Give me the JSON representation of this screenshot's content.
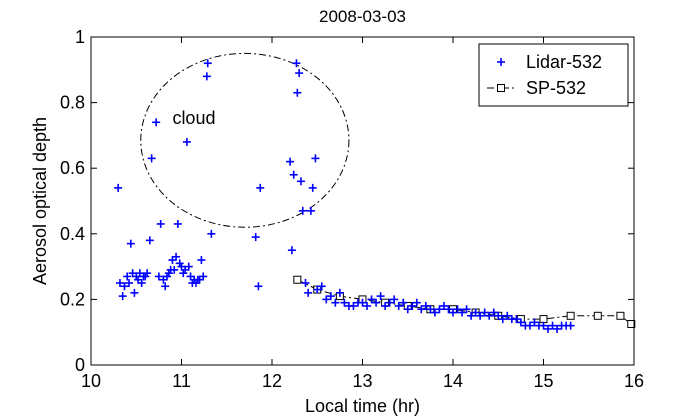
{
  "chart_data": {
    "type": "scatter",
    "title": "2008-03-03",
    "xlabel": "Local time (hr)",
    "ylabel": "Aerosol optical depth",
    "xlim": [
      10,
      16
    ],
    "ylim": [
      0,
      1
    ],
    "xticks": [
      10,
      11,
      12,
      13,
      14,
      15,
      16
    ],
    "yticks": [
      0,
      0.2,
      0.4,
      0.6,
      0.8,
      1
    ],
    "xtick_labels": [
      "10",
      "11",
      "12",
      "13",
      "14",
      "15",
      "16"
    ],
    "ytick_labels": [
      "0",
      "0.2",
      "0.4",
      "0.6",
      "0.8",
      "1"
    ],
    "grid": false,
    "legend_position": "top-right",
    "annotation": {
      "text": "cloud",
      "at": [
        10.9,
        0.75
      ],
      "ellipse_center": [
        11.7,
        0.685
      ],
      "ellipse_radii": [
        1.15,
        0.265
      ]
    },
    "series": [
      {
        "name": "Lidar-532",
        "marker": "plus",
        "color": "#0000ff",
        "points": [
          [
            10.3,
            0.54
          ],
          [
            10.32,
            0.25
          ],
          [
            10.35,
            0.21
          ],
          [
            10.37,
            0.24
          ],
          [
            10.4,
            0.27
          ],
          [
            10.42,
            0.25
          ],
          [
            10.44,
            0.37
          ],
          [
            10.46,
            0.28
          ],
          [
            10.48,
            0.22
          ],
          [
            10.5,
            0.27
          ],
          [
            10.52,
            0.26
          ],
          [
            10.54,
            0.28
          ],
          [
            10.56,
            0.25
          ],
          [
            10.58,
            0.27
          ],
          [
            10.6,
            0.27
          ],
          [
            10.62,
            0.28
          ],
          [
            10.65,
            0.38
          ],
          [
            10.67,
            0.63
          ],
          [
            10.72,
            0.74
          ],
          [
            10.75,
            0.27
          ],
          [
            10.77,
            0.43
          ],
          [
            10.8,
            0.26
          ],
          [
            10.82,
            0.24
          ],
          [
            10.84,
            0.27
          ],
          [
            10.86,
            0.28
          ],
          [
            10.88,
            0.29
          ],
          [
            10.9,
            0.32
          ],
          [
            10.92,
            0.29
          ],
          [
            10.94,
            0.33
          ],
          [
            10.96,
            0.43
          ],
          [
            10.98,
            0.31
          ],
          [
            11.0,
            0.3
          ],
          [
            11.02,
            0.28
          ],
          [
            11.04,
            0.29
          ],
          [
            11.06,
            0.68
          ],
          [
            11.08,
            0.3
          ],
          [
            11.1,
            0.27
          ],
          [
            11.12,
            0.25
          ],
          [
            11.14,
            0.26
          ],
          [
            11.16,
            0.25
          ],
          [
            11.18,
            0.26
          ],
          [
            11.2,
            0.26
          ],
          [
            11.22,
            0.32
          ],
          [
            11.24,
            0.27
          ],
          [
            11.28,
            0.88
          ],
          [
            11.29,
            0.92
          ],
          [
            11.33,
            0.4
          ],
          [
            11.82,
            0.39
          ],
          [
            11.85,
            0.24
          ],
          [
            11.87,
            0.54
          ],
          [
            12.2,
            0.62
          ],
          [
            12.22,
            0.35
          ],
          [
            12.24,
            0.58
          ],
          [
            12.27,
            0.92
          ],
          [
            12.28,
            0.83
          ],
          [
            12.3,
            0.89
          ],
          [
            12.32,
            0.56
          ],
          [
            12.34,
            0.47
          ],
          [
            12.37,
            0.25
          ],
          [
            12.4,
            0.22
          ],
          [
            12.43,
            0.47
          ],
          [
            12.45,
            0.54
          ],
          [
            12.48,
            0.63
          ],
          [
            12.5,
            0.23
          ],
          [
            12.55,
            0.24
          ],
          [
            12.6,
            0.2
          ],
          [
            12.65,
            0.21
          ],
          [
            12.7,
            0.19
          ],
          [
            12.75,
            0.22
          ],
          [
            12.8,
            0.19
          ],
          [
            12.85,
            0.18
          ],
          [
            12.9,
            0.18
          ],
          [
            12.95,
            0.19
          ],
          [
            13.0,
            0.19
          ],
          [
            13.05,
            0.18
          ],
          [
            13.1,
            0.2
          ],
          [
            13.15,
            0.19
          ],
          [
            13.2,
            0.21
          ],
          [
            13.25,
            0.18
          ],
          [
            13.3,
            0.19
          ],
          [
            13.35,
            0.2
          ],
          [
            13.4,
            0.18
          ],
          [
            13.45,
            0.19
          ],
          [
            13.5,
            0.17
          ],
          [
            13.55,
            0.18
          ],
          [
            13.6,
            0.19
          ],
          [
            13.65,
            0.17
          ],
          [
            13.7,
            0.18
          ],
          [
            13.75,
            0.17
          ],
          [
            13.8,
            0.16
          ],
          [
            13.85,
            0.17
          ],
          [
            13.9,
            0.18
          ],
          [
            13.95,
            0.17
          ],
          [
            14.0,
            0.16
          ],
          [
            14.05,
            0.17
          ],
          [
            14.1,
            0.16
          ],
          [
            14.15,
            0.17
          ],
          [
            14.2,
            0.15
          ],
          [
            14.25,
            0.16
          ],
          [
            14.3,
            0.15
          ],
          [
            14.35,
            0.16
          ],
          [
            14.4,
            0.15
          ],
          [
            14.45,
            0.16
          ],
          [
            14.5,
            0.15
          ],
          [
            14.55,
            0.14
          ],
          [
            14.6,
            0.15
          ],
          [
            14.65,
            0.14
          ],
          [
            14.7,
            0.14
          ],
          [
            14.75,
            0.13
          ],
          [
            14.8,
            0.12
          ],
          [
            14.85,
            0.12
          ],
          [
            14.9,
            0.13
          ],
          [
            14.95,
            0.12
          ],
          [
            15.0,
            0.12
          ],
          [
            15.05,
            0.11
          ],
          [
            15.1,
            0.12
          ],
          [
            15.15,
            0.11
          ],
          [
            15.2,
            0.12
          ],
          [
            15.25,
            0.12
          ],
          [
            15.3,
            0.12
          ]
        ]
      },
      {
        "name": "SP-532",
        "marker": "square",
        "line": "dash-dot",
        "color": "#000000",
        "points": [
          [
            12.28,
            0.26
          ],
          [
            12.5,
            0.23
          ],
          [
            12.75,
            0.21
          ],
          [
            13.0,
            0.2
          ],
          [
            13.25,
            0.19
          ],
          [
            13.5,
            0.18
          ],
          [
            13.75,
            0.17
          ],
          [
            14.0,
            0.17
          ],
          [
            14.25,
            0.16
          ],
          [
            14.5,
            0.15
          ],
          [
            14.75,
            0.14
          ],
          [
            15.0,
            0.14
          ],
          [
            15.3,
            0.15
          ],
          [
            15.6,
            0.15
          ],
          [
            15.85,
            0.15
          ],
          [
            15.97,
            0.125
          ]
        ]
      }
    ]
  }
}
